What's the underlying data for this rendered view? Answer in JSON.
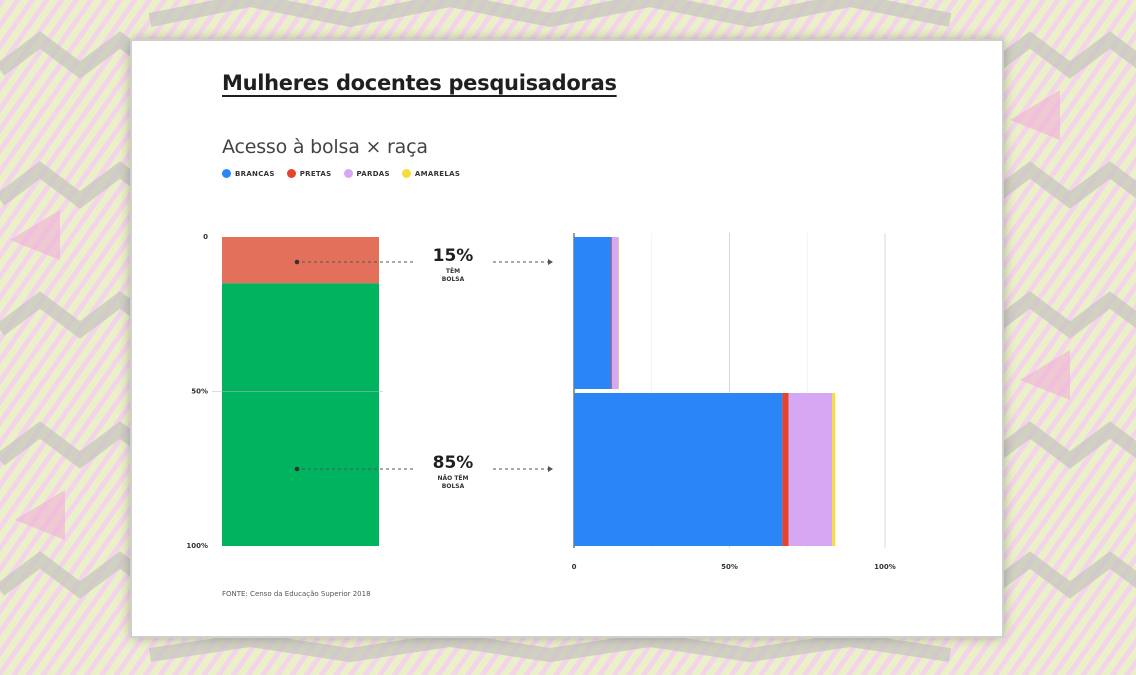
{
  "title": "Mulheres docentes pesquisadoras",
  "subtitle": "Acesso à bolsa × raça",
  "source": "FONTE: Censo da Educação Superior 2018",
  "legend": [
    {
      "label": "BRANCAS",
      "color": "#2a86f7"
    },
    {
      "label": "PRETAS",
      "color": "#e5432a"
    },
    {
      "label": "PARDAS",
      "color": "#d6a8f3"
    },
    {
      "label": "AMARELAS",
      "color": "#f6dc3a"
    }
  ],
  "chart_data": [
    {
      "type": "bar",
      "orientation": "vertical-stacked",
      "categories": [
        "TÊM BOLSA",
        "NÃO TÊM BOLSA"
      ],
      "values": [
        15,
        85
      ],
      "colors": [
        "#e2705a",
        "#00b35f"
      ],
      "ylim": [
        0,
        100
      ],
      "ticks": [
        "0",
        "50%",
        "100%"
      ],
      "annotations": [
        {
          "value": "15%",
          "line1": "TÊM",
          "line2": "BOLSA"
        },
        {
          "value": "85%",
          "line1": "NÃO TÊM",
          "line2": "BOLSA"
        }
      ]
    },
    {
      "type": "bar",
      "orientation": "horizontal-stacked",
      "categories": [
        "TÊM BOLSA",
        "NÃO TÊM BOLSA"
      ],
      "series": [
        {
          "name": "BRANCAS",
          "color": "#2a86f7",
          "values": [
            12,
            67
          ]
        },
        {
          "name": "PRETAS",
          "color": "#e5432a",
          "values": [
            0.3,
            2
          ]
        },
        {
          "name": "PARDAS",
          "color": "#d6a8f3",
          "values": [
            2,
            14
          ]
        },
        {
          "name": "AMARELAS",
          "color": "#f6dc3a",
          "values": [
            0.1,
            1
          ]
        }
      ],
      "xlim": [
        0,
        100
      ],
      "ticks": [
        "0",
        "50%",
        "100%"
      ],
      "grid": true
    }
  ]
}
